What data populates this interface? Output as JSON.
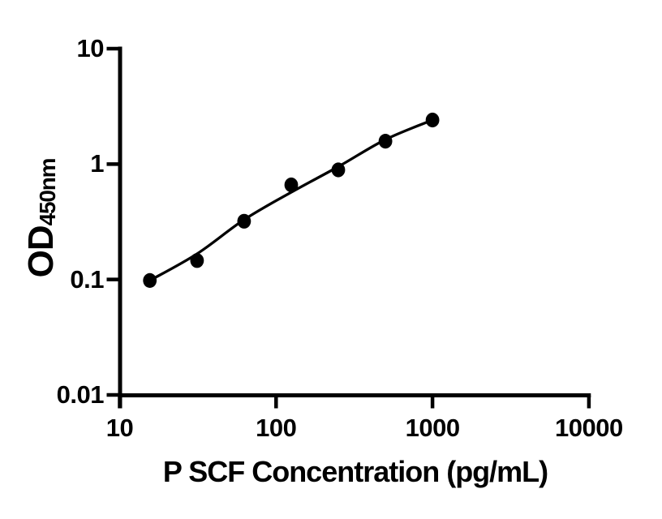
{
  "figure": {
    "background_color": "#ffffff",
    "ink_color": "#000000"
  },
  "chart_data": {
    "type": "scatter",
    "title": "",
    "xlabel": "P SCF Concentration (pg/mL)",
    "ylabel": "OD450nm",
    "ylabel_main": "OD",
    "ylabel_sub": "450nm",
    "xscale": "log",
    "yscale": "log",
    "xlim": [
      10,
      10000
    ],
    "ylim": [
      0.01,
      10
    ],
    "x_ticks": [
      10,
      100,
      1000,
      10000
    ],
    "x_tick_labels": [
      "10",
      "100",
      "1000",
      "10000"
    ],
    "y_ticks": [
      10,
      1,
      0.1,
      0.01
    ],
    "y_tick_labels": [
      "10",
      "1",
      "0.1",
      "0.01"
    ],
    "grid": false,
    "legend_position": "none",
    "marker_color": "#000000",
    "line_color": "#000000",
    "series": [
      {
        "name": "P SCF standard curve points",
        "marker": "filled-circle",
        "x": [
          15.6,
          31.25,
          62.5,
          125,
          250,
          500,
          1000
        ],
        "y": [
          0.098,
          0.146,
          0.32,
          0.66,
          0.89,
          1.58,
          2.41
        ]
      }
    ],
    "fit_curve": {
      "name": "fitted standard curve line",
      "x": [
        15.6,
        31.25,
        62.5,
        125,
        250,
        500,
        1000
      ],
      "y": [
        0.098,
        0.167,
        0.33,
        0.57,
        0.95,
        1.63,
        2.41
      ]
    }
  }
}
